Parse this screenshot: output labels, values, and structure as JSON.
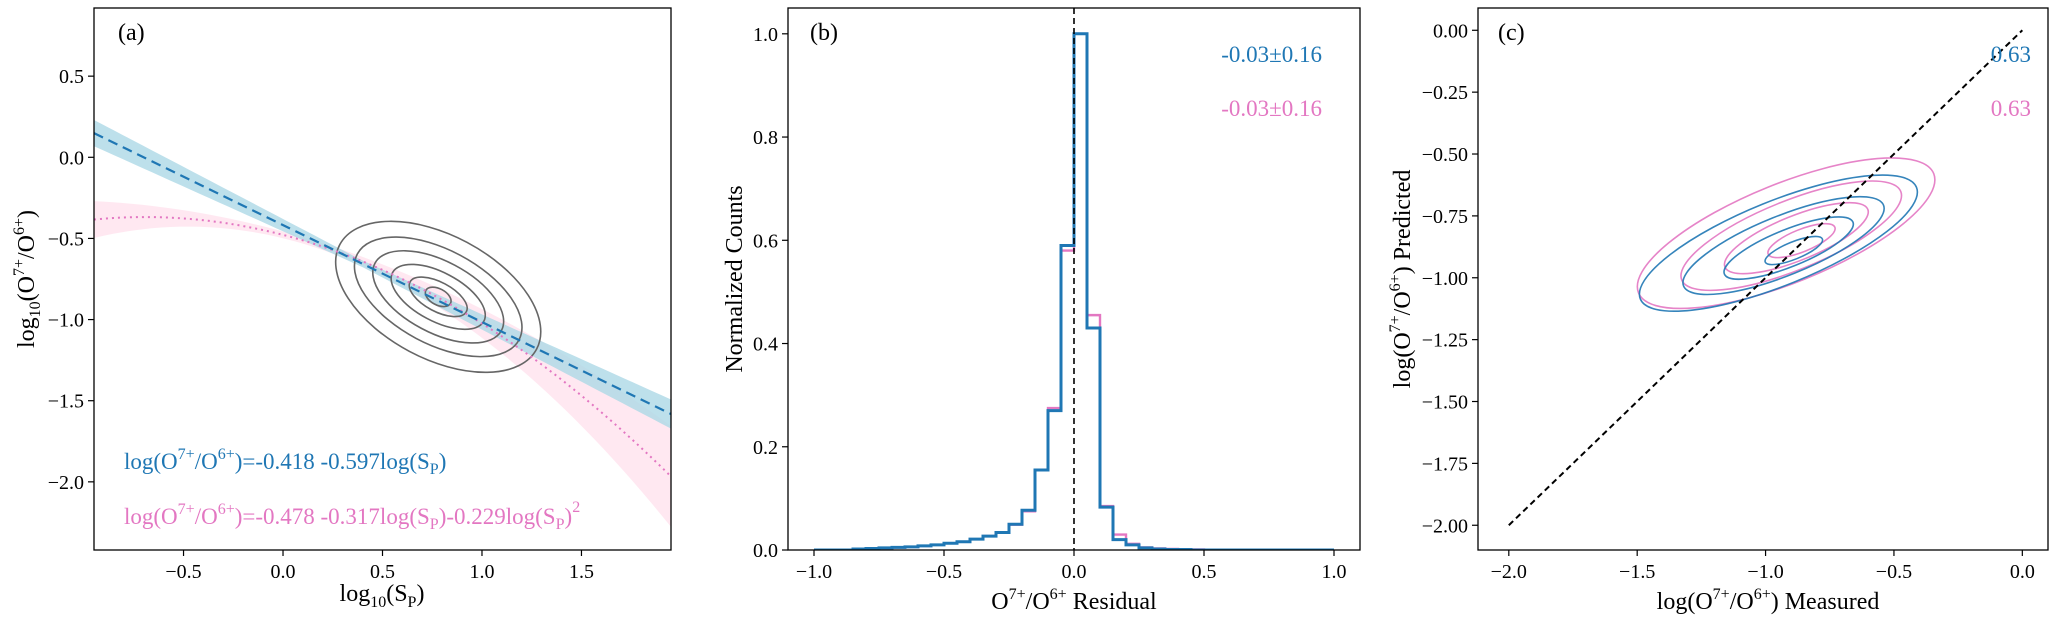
{
  "colors": {
    "blue": "#1f77b4",
    "pink": "#e377c2",
    "band_blue": "#add8e6",
    "band_pink": "#ffe4ee",
    "contour": "#666666"
  },
  "chart_data": [
    {
      "id": "a",
      "type": "line",
      "panel_label": "(a)",
      "xlabel": "log10(SP)",
      "ylabel": "log10(O7+/O6+)",
      "xlim": [
        -0.95,
        1.95
      ],
      "ylim": [
        -2.42,
        0.92
      ],
      "xticks": [
        -0.5,
        0.0,
        0.5,
        1.0,
        1.5
      ],
      "xtick_labels": [
        "−0.5",
        "0.0",
        "0.5",
        "1.0",
        "1.5"
      ],
      "yticks": [
        0.5,
        0.0,
        -0.5,
        -1.0,
        -1.5,
        -2.0
      ],
      "ytick_labels": [
        "0.5",
        "0.0",
        "−0.5",
        "−1.0",
        "−1.5",
        "−2.0"
      ],
      "series": [
        {
          "name": "linear fit",
          "color": "blue",
          "style": "dashed",
          "intercept": -0.418,
          "slope": -0.597
        },
        {
          "name": "quadratic fit",
          "color": "pink",
          "style": "dotted",
          "c0": -0.478,
          "c1": -0.317,
          "c2": -0.229
        }
      ],
      "contour_rings": [
        {
          "cx": 0.78,
          "cy": -0.86,
          "rx": 0.56,
          "ry": 0.38
        },
        {
          "cx": 0.78,
          "cy": -0.86,
          "rx": 0.46,
          "ry": 0.29
        },
        {
          "cx": 0.78,
          "cy": -0.86,
          "rx": 0.36,
          "ry": 0.22
        },
        {
          "cx": 0.78,
          "cy": -0.86,
          "rx": 0.26,
          "ry": 0.15
        },
        {
          "cx": 0.78,
          "cy": -0.86,
          "rx": 0.16,
          "ry": 0.09
        },
        {
          "cx": 0.78,
          "cy": -0.86,
          "rx": 0.07,
          "ry": 0.05
        }
      ],
      "annotations": {
        "lin_lhs": "log(O",
        "lin_sup1": "7+",
        "lin_mid": "/O",
        "lin_sup2": "6+",
        "lin_rhs": ")=-0.418 -0.597log(S",
        "lin_sub": "P",
        "lin_end": ")",
        "quad_lhs": "log(O",
        "quad_sup1": "7+",
        "quad_mid": "/O",
        "quad_sup2": "6+",
        "quad_rhs": ")=-0.478 -0.317log(S",
        "quad_sub1": "P",
        "quad_mid2": ")-0.229log(S",
        "quad_sub2": "P",
        "quad_end": ")",
        "quad_sup3": "2"
      }
    },
    {
      "id": "b",
      "type": "histogram",
      "panel_label": "(b)",
      "xlabel": "O7+/O6+ Residual",
      "ylabel": "Normalized Counts",
      "xlim": [
        -1.1,
        1.1
      ],
      "ylim": [
        0.0,
        1.05
      ],
      "xticks": [
        -1.0,
        -0.5,
        0.0,
        0.5,
        1.0
      ],
      "xtick_labels": [
        "−1.0",
        "−0.5",
        "0.0",
        "0.5",
        "1.0"
      ],
      "yticks": [
        0.0,
        0.2,
        0.4,
        0.6,
        0.8,
        1.0
      ],
      "ytick_labels": [
        "0.0",
        "0.2",
        "0.4",
        "0.6",
        "0.8",
        "1.0"
      ],
      "bin_edges": [
        -1.0,
        -0.95,
        -0.9,
        -0.85,
        -0.8,
        -0.75,
        -0.7,
        -0.65,
        -0.6,
        -0.55,
        -0.5,
        -0.45,
        -0.4,
        -0.35,
        -0.3,
        -0.25,
        -0.2,
        -0.15,
        -0.1,
        -0.05,
        0.0,
        0.05,
        0.1,
        0.15,
        0.2,
        0.25,
        0.3,
        0.35,
        0.4,
        0.45,
        0.5,
        0.55,
        0.6,
        0.65,
        0.7,
        0.75,
        0.8,
        0.85,
        0.9,
        0.95,
        1.0
      ],
      "series": [
        {
          "name": "pink",
          "color": "pink",
          "values": [
            0.0,
            0.0,
            0.0,
            0.002,
            0.003,
            0.004,
            0.005,
            0.006,
            0.008,
            0.01,
            0.013,
            0.016,
            0.021,
            0.027,
            0.034,
            0.049,
            0.075,
            0.155,
            0.275,
            0.58,
            1.0,
            0.455,
            0.085,
            0.03,
            0.012,
            0.005,
            0.003,
            0.002,
            0.001,
            0.001,
            0.0,
            0.0,
            0.0,
            0.0,
            0.0,
            0.0,
            0.0,
            0.0,
            0.0,
            0.0
          ]
        },
        {
          "name": "blue",
          "color": "blue",
          "values": [
            0.0,
            0.0,
            0.0,
            0.002,
            0.003,
            0.004,
            0.005,
            0.006,
            0.008,
            0.01,
            0.013,
            0.016,
            0.021,
            0.027,
            0.034,
            0.05,
            0.077,
            0.155,
            0.27,
            0.59,
            1.0,
            0.43,
            0.083,
            0.02,
            0.01,
            0.004,
            0.002,
            0.001,
            0.001,
            0.0,
            0.0,
            0.0,
            0.0,
            0.0,
            0.0,
            0.0,
            0.0,
            0.0,
            0.0,
            0.0
          ]
        }
      ],
      "vline_x": 0.0,
      "stats": {
        "blue": "-0.03±0.16",
        "pink": "-0.03±0.16"
      }
    },
    {
      "id": "c",
      "type": "contour",
      "panel_label": "(c)",
      "xlabel": "log(O7+/O6+) Measured",
      "ylabel": "log(O7+/O6+) Predicted",
      "xlim": [
        -2.12,
        0.1
      ],
      "ylim": [
        -2.1,
        0.09
      ],
      "xticks": [
        -2.0,
        -1.5,
        -1.0,
        -0.5,
        0.0
      ],
      "xtick_labels": [
        "−2.0",
        "−1.5",
        "−1.0",
        "−0.5",
        "0.0"
      ],
      "yticks": [
        0.0,
        -0.25,
        -0.5,
        -0.75,
        -1.0,
        -1.25,
        -1.5,
        -1.75,
        -2.0
      ],
      "ytick_labels": [
        "0.00",
        "−0.25",
        "−0.50",
        "−0.75",
        "−1.00",
        "−1.25",
        "−1.50",
        "−1.75",
        "−2.00"
      ],
      "identity_line": [
        [
          -2.0,
          -2.0
        ],
        [
          0.0,
          0.0
        ]
      ],
      "contours": [
        {
          "color": "pink",
          "rings": [
            {
              "cx": -0.92,
              "cy": -0.82,
              "rx": 0.62,
              "ry": 0.2,
              "rot": -22
            },
            {
              "cx": -0.9,
              "cy": -0.83,
              "rx": 0.46,
              "ry": 0.14,
              "rot": -22
            },
            {
              "cx": -0.88,
              "cy": -0.84,
              "rx": 0.3,
              "ry": 0.09,
              "rot": -22
            },
            {
              "cx": -0.86,
              "cy": -0.85,
              "rx": 0.14,
              "ry": 0.045,
              "rot": -22
            }
          ]
        },
        {
          "color": "blue",
          "rings": [
            {
              "cx": -0.95,
              "cy": -0.86,
              "rx": 0.58,
              "ry": 0.17,
              "rot": -22
            },
            {
              "cx": -0.93,
              "cy": -0.87,
              "rx": 0.42,
              "ry": 0.12,
              "rot": -22
            },
            {
              "cx": -0.91,
              "cy": -0.88,
              "rx": 0.27,
              "ry": 0.075,
              "rot": -22
            },
            {
              "cx": -0.89,
              "cy": -0.89,
              "rx": 0.12,
              "ry": 0.035,
              "rot": -22
            }
          ]
        }
      ],
      "stats": {
        "blue": "0.63",
        "pink": "0.63"
      }
    }
  ]
}
